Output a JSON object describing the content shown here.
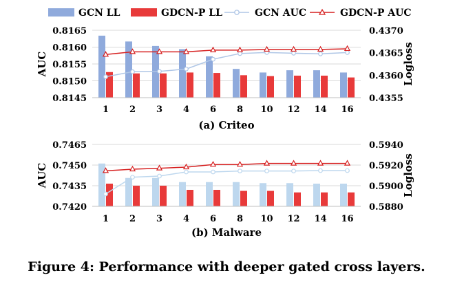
{
  "figure": {
    "caption": "Figure 4: Performance with deeper gated cross layers."
  },
  "legend": {
    "items": [
      {
        "label": "GCN LL",
        "kind": "bar",
        "color": "#8FAADC"
      },
      {
        "label": "GDCN-P LL",
        "kind": "bar",
        "color": "#E83A3A"
      },
      {
        "label": "GCN AUC",
        "kind": "line-circle",
        "color": "#AFC6E6"
      },
      {
        "label": "GDCN-P AUC",
        "kind": "line-triangle",
        "color": "#D62020"
      }
    ]
  },
  "chart_data": [
    {
      "type": "bar+line",
      "subtitle": "(a) Criteo",
      "categories": [
        "1",
        "2",
        "3",
        "4",
        "6",
        "8",
        "10",
        "12",
        "14",
        "16"
      ],
      "left_axis": {
        "label": "AUC",
        "lim": [
          0.8145,
          0.8165
        ],
        "ticks": [
          "0.8145",
          "0.8150",
          "0.8155",
          "0.8160",
          "0.8165"
        ]
      },
      "right_axis": {
        "label": "Logloss",
        "lim": [
          0.4355,
          0.437
        ],
        "ticks": [
          "0.4355",
          "0.4360",
          "0.4365",
          "0.4370"
        ]
      },
      "bar_series": [
        {
          "name": "GCN LL",
          "axis": "right",
          "color": "#8FAADC",
          "values": [
            0.43688,
            0.43675,
            0.43665,
            0.43658,
            0.43642,
            0.43614,
            0.43606,
            0.43611,
            0.43611,
            0.43606
          ]
        },
        {
          "name": "GDCN-P LL",
          "axis": "right",
          "color": "#E83A3A",
          "values": [
            0.43607,
            0.43604,
            0.43604,
            0.43606,
            0.43605,
            0.436,
            0.43598,
            0.43599,
            0.43599,
            0.43595
          ]
        }
      ],
      "line_series": [
        {
          "name": "GCN AUC",
          "axis": "left",
          "color": "#AFC6E6",
          "marker": "circle",
          "values": [
            0.81512,
            0.81527,
            0.81528,
            0.81535,
            0.81564,
            0.81581,
            0.81584,
            0.81582,
            0.8158,
            0.81584
          ]
        },
        {
          "name": "GDCN-P AUC",
          "axis": "left",
          "color": "#D62020",
          "marker": "triangle",
          "values": [
            0.81578,
            0.81586,
            0.81586,
            0.81586,
            0.81591,
            0.81591,
            0.81593,
            0.81593,
            0.81593,
            0.81595
          ]
        }
      ],
      "grid": "horizontal"
    },
    {
      "type": "bar+line",
      "subtitle": "(b) Malware",
      "categories": [
        "1",
        "2",
        "3",
        "4",
        "6",
        "8",
        "10",
        "12",
        "14",
        "16"
      ],
      "left_axis": {
        "label": "AUC",
        "lim": [
          0.742,
          0.7465
        ],
        "ticks": [
          "0.7420",
          "0.7435",
          "0.7450",
          "0.7465"
        ]
      },
      "right_axis": {
        "label": "Logloss",
        "lim": [
          0.588,
          0.594
        ],
        "ticks": [
          "0.5880",
          "0.5900",
          "0.5920",
          "0.5940"
        ]
      },
      "bar_series": [
        {
          "name": "GCN LL",
          "axis": "right",
          "color": "#BDD7EE",
          "values": [
            0.59215,
            0.59075,
            0.59075,
            0.59035,
            0.59035,
            0.59035,
            0.59025,
            0.59025,
            0.5902,
            0.5902
          ]
        },
        {
          "name": "GDCN-P LL",
          "axis": "right",
          "color": "#E83A3A",
          "values": [
            0.5902,
            0.59,
            0.59,
            0.5896,
            0.5896,
            0.5895,
            0.5895,
            0.58935,
            0.58935,
            0.58935
          ]
        }
      ],
      "line_series": [
        {
          "name": "GCN AUC",
          "axis": "left",
          "color": "#BDD7EE",
          "marker": "circle",
          "values": [
            0.7429,
            0.74412,
            0.7442,
            0.7445,
            0.7445,
            0.74457,
            0.74457,
            0.74457,
            0.7446,
            0.7446
          ]
        },
        {
          "name": "GDCN-P AUC",
          "axis": "left",
          "color": "#D62020",
          "marker": "triangle",
          "values": [
            0.74458,
            0.7447,
            0.74477,
            0.74485,
            0.74504,
            0.74504,
            0.74512,
            0.74512,
            0.74512,
            0.74512
          ]
        }
      ],
      "grid": "horizontal"
    }
  ]
}
